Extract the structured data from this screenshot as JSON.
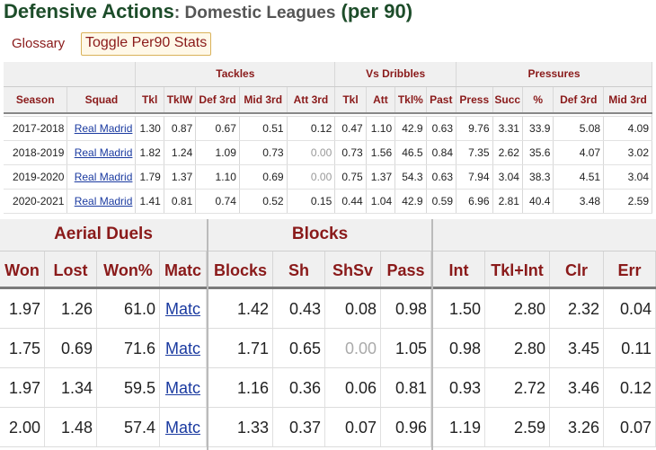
{
  "title": {
    "main": "Defensive Actions",
    "sub": ": Domestic Leagues",
    "per": "(per 90)"
  },
  "controls": {
    "glossary": "Glossary",
    "toggle": "Toggle Per90 Stats"
  },
  "top_table": {
    "groups": {
      "tackles": "Tackles",
      "vs_dribbles": "Vs Dribbles",
      "pressures": "Pressures"
    },
    "headers": [
      "Season",
      "Squad",
      "Tkl",
      "TklW",
      "Def 3rd",
      "Mid 3rd",
      "Att 3rd",
      "Tkl",
      "Att",
      "Tkl%",
      "Past",
      "Press",
      "Succ",
      "%",
      "Def 3rd",
      "Mid 3rd"
    ],
    "rows": [
      [
        "2017-2018",
        "Real Madrid",
        "1.30",
        "0.87",
        "0.67",
        "0.51",
        "0.12",
        "0.47",
        "1.10",
        "42.9",
        "0.63",
        "9.76",
        "3.31",
        "33.9",
        "5.08",
        "4.09"
      ],
      [
        "2018-2019",
        "Real Madrid",
        "1.82",
        "1.24",
        "1.09",
        "0.73",
        "0.00",
        "0.73",
        "1.56",
        "46.5",
        "0.84",
        "7.35",
        "2.62",
        "35.6",
        "4.07",
        "3.02"
      ],
      [
        "2019-2020",
        "Real Madrid",
        "1.79",
        "1.37",
        "1.10",
        "0.69",
        "0.00",
        "0.75",
        "1.37",
        "54.3",
        "0.63",
        "7.94",
        "3.04",
        "38.3",
        "4.51",
        "3.04"
      ],
      [
        "2020-2021",
        "Real Madrid",
        "1.41",
        "0.81",
        "0.74",
        "0.52",
        "0.15",
        "0.44",
        "1.04",
        "42.9",
        "0.59",
        "6.96",
        "2.81",
        "40.4",
        "3.48",
        "2.59"
      ]
    ]
  },
  "aerial": {
    "group": "Aerial Duels",
    "headers": [
      "Won",
      "Lost",
      "Won%",
      "Matc"
    ],
    "rows": [
      [
        "1.97",
        "1.26",
        "61.0",
        "Matc"
      ],
      [
        "1.75",
        "0.69",
        "71.6",
        "Matc"
      ],
      [
        "1.97",
        "1.34",
        "59.5",
        "Matc"
      ],
      [
        "2.00",
        "1.48",
        "57.4",
        "Matc"
      ]
    ]
  },
  "blocks": {
    "group": "Blocks",
    "headers": [
      "Blocks",
      "Sh",
      "ShSv",
      "Pass"
    ],
    "rows": [
      [
        "1.42",
        "0.43",
        "0.08",
        "0.98"
      ],
      [
        "1.71",
        "0.65",
        "0.00",
        "1.05"
      ],
      [
        "1.16",
        "0.36",
        "0.06",
        "0.81"
      ],
      [
        "1.33",
        "0.37",
        "0.07",
        "0.96"
      ]
    ]
  },
  "other": {
    "headers": [
      "Int",
      "Tkl+Int",
      "Clr",
      "Err"
    ],
    "rows": [
      [
        "1.50",
        "2.80",
        "2.32",
        "0.04"
      ],
      [
        "0.98",
        "2.80",
        "3.45",
        "0.11"
      ],
      [
        "0.93",
        "2.72",
        "3.46",
        "0.12"
      ],
      [
        "1.19",
        "2.59",
        "3.26",
        "0.07"
      ]
    ]
  },
  "colors": {
    "header_text": "#8a1a1a",
    "title_green": "#1d4d2a",
    "link_blue": "#1a3aa0"
  }
}
